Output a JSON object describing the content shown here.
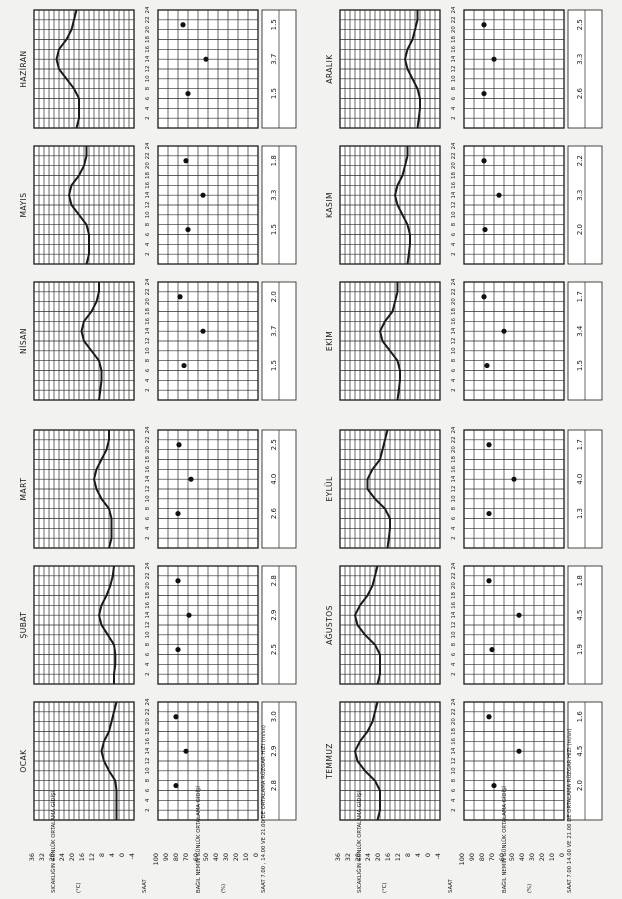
{
  "left_labels": {
    "temp_axis": "SICAKLIĞIN GÜNLÜK ORTALAMA GİDİŞİ",
    "temp_unit": "(°C)",
    "saat": "SAAT",
    "humidity_axis": "BAĞIL NEMİN GÜNLÜK ORTALAMA GİDİŞİ",
    "humidity_unit": "(%)",
    "wind_top": "SAAT 7.00 , 14.00 VE 21.00 DE ORTALAMA RÜZGAR HIZI (m/sn)",
    "wind_bottom": "SAAT 7.00 14.00 VE 21.00 DE ORTALAMA RÜZGAR HIZI (m/sn)"
  },
  "chart_data": {
    "type": "line",
    "temp_ylabel": "SICAKLIĞIN GÜNLÜK ORTALAMA GİDİŞİ (°C)",
    "humidity_ylabel": "BAĞIL NEMİN GÜNLÜK ORTALAMA GİDİŞİ (%)",
    "x_label": "SAAT",
    "temp_ticks": [
      "36",
      "32",
      "28",
      "24",
      "20",
      "16",
      "12",
      "8",
      "4",
      "0",
      "-4"
    ],
    "temp_ylim": [
      -4,
      36
    ],
    "humidity_ticks": [
      "100",
      "90",
      "80",
      "70",
      "60",
      "50",
      "40",
      "30",
      "20",
      "10",
      "0"
    ],
    "humidity_ylim": [
      0,
      100
    ],
    "hour_ticks": [
      "2",
      "4",
      "6",
      "8",
      "10",
      "12",
      "14",
      "16",
      "18",
      "20",
      "22",
      "24"
    ],
    "hours": [
      0,
      2,
      4,
      6,
      8,
      10,
      12,
      14,
      16,
      18,
      20,
      22,
      24
    ],
    "observation_hours": [
      7,
      14,
      21
    ],
    "months": [
      {
        "name": "OCAK",
        "temp": [
          3,
          3,
          3,
          3,
          3.5,
          6,
          8,
          9,
          8,
          6,
          5,
          4,
          3
        ],
        "humidity": [
          82,
          72,
          82
        ],
        "wind": [
          "2.8",
          "2.9",
          "3.0"
        ]
      },
      {
        "name": "ŞUBAT",
        "temp": [
          4,
          4,
          3.5,
          3.5,
          4,
          6.5,
          9,
          10,
          9,
          7,
          5.5,
          4.5,
          4
        ],
        "humidity": [
          80,
          69,
          80
        ],
        "wind": [
          "2.5",
          "2.9",
          "2.8"
        ]
      },
      {
        "name": "MART",
        "temp": [
          6,
          5,
          5,
          5,
          6,
          9,
          11,
          12,
          11,
          9,
          7,
          6,
          6
        ],
        "humidity": [
          80,
          67,
          79
        ],
        "wind": [
          "2.6",
          "4.0",
          "2.5"
        ]
      },
      {
        "name": "NİSAN",
        "temp": [
          10,
          9.5,
          9,
          9,
          10,
          13,
          16,
          17,
          16,
          13,
          11,
          10,
          10
        ],
        "humidity": [
          74,
          55,
          78
        ],
        "wind": [
          "1.5",
          "3.7",
          "2.0"
        ]
      },
      {
        "name": "MAYIS",
        "temp": [
          15,
          14,
          14,
          14,
          15,
          18,
          21,
          22,
          21,
          18,
          16,
          15,
          15
        ],
        "humidity": [
          70,
          55,
          72
        ],
        "wind": [
          "1.5",
          "3.3",
          "1.8"
        ]
      },
      {
        "name": "HAZİRAN",
        "temp": [
          19,
          18,
          18,
          18,
          20,
          23,
          26,
          27,
          26,
          23,
          21,
          20,
          19
        ],
        "humidity": [
          70,
          52,
          75
        ],
        "wind": [
          "1.5",
          "3.7",
          "1.5"
        ]
      },
      {
        "name": "TEMMUZ",
        "temp": [
          21,
          20,
          20,
          20,
          22,
          26,
          29,
          30,
          28,
          25,
          23,
          22,
          21
        ],
        "humidity": [
          70,
          45,
          75
        ],
        "wind": [
          "2.0",
          "4.5",
          "1.6"
        ]
      },
      {
        "name": "AĞUSTOS",
        "temp": [
          21,
          20,
          20,
          20,
          22,
          26,
          29,
          30,
          28,
          25,
          23,
          22,
          21
        ],
        "humidity": [
          72,
          45,
          75
        ],
        "wind": [
          "1.9",
          "4.5",
          "1.8"
        ]
      },
      {
        "name": "EYLÜL",
        "temp": [
          17,
          16.5,
          16,
          16,
          18,
          22,
          25,
          25,
          23,
          20,
          19,
          18,
          17
        ],
        "humidity": [
          75,
          50,
          75
        ],
        "wind": [
          "1.3",
          "4.0",
          "1.7"
        ]
      },
      {
        "name": "EKİM",
        "temp": [
          13,
          12.5,
          12,
          12,
          13,
          16,
          19,
          20,
          18,
          15,
          14,
          13,
          13
        ],
        "humidity": [
          77,
          60,
          80
        ],
        "wind": [
          "1.5",
          "3.4",
          "1.7"
        ]
      },
      {
        "name": "KASIM",
        "temp": [
          9,
          8.5,
          8,
          8,
          9,
          11,
          13,
          14,
          13,
          11,
          10,
          9,
          9
        ],
        "humidity": [
          79,
          65,
          80
        ],
        "wind": [
          "2.0",
          "3.3",
          "2.2"
        ]
      },
      {
        "name": "ARALIK",
        "temp": [
          5,
          4.5,
          4,
          4,
          5,
          7,
          9,
          10,
          9,
          7,
          6,
          5,
          5
        ],
        "humidity": [
          80,
          70,
          80
        ],
        "wind": [
          "2.6",
          "3.3",
          "2.5"
        ]
      }
    ]
  }
}
